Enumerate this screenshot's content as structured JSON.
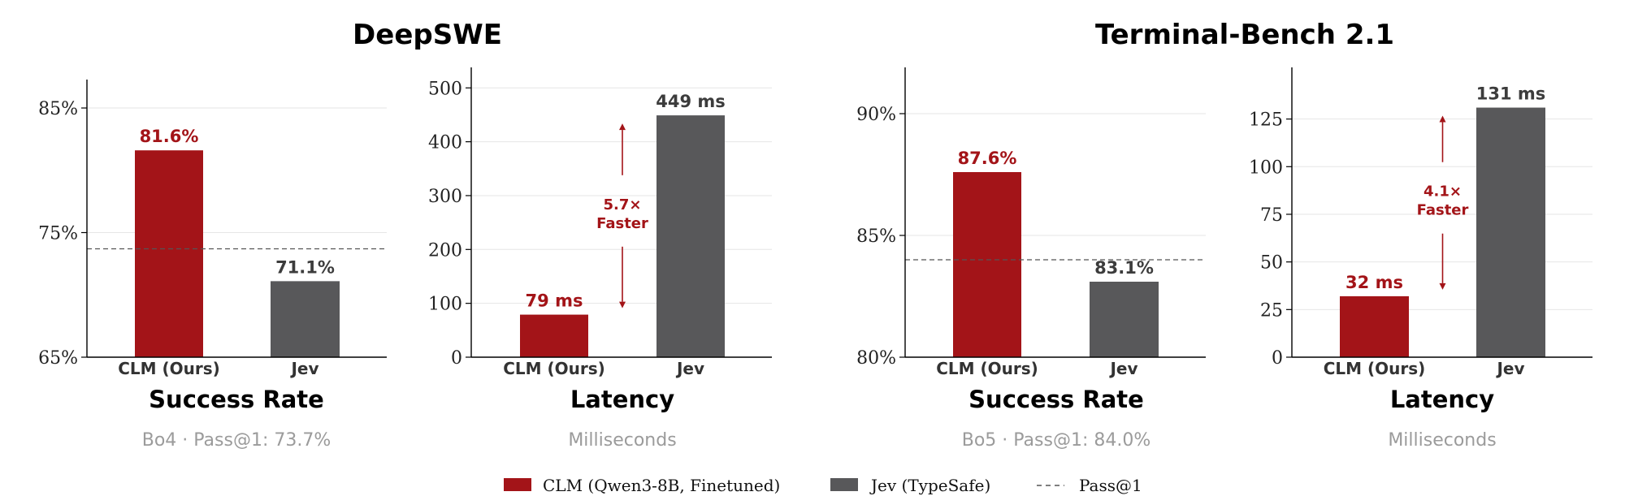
{
  "group_titles": [
    "DeepSWE",
    "Terminal-Bench 2.1"
  ],
  "colors": {
    "clm": "#a31418",
    "jev": "#58585a",
    "pass": "#555555"
  },
  "legend": [
    {
      "key": "clm",
      "label": "CLM (Qwen3-8B, Finetuned)",
      "kind": "box"
    },
    {
      "key": "jev",
      "label": "Jev (TypeSafe)",
      "kind": "box"
    },
    {
      "key": "pass",
      "label": "Pass@1",
      "kind": "dash"
    }
  ],
  "chart_data": [
    {
      "type": "bar",
      "group": "DeepSWE",
      "title": "Success Rate",
      "subtitle": "Bo4 · Pass@1: 73.7%",
      "categories": [
        "CLM (Ours)",
        "Jev"
      ],
      "values": [
        81.6,
        71.1
      ],
      "value_labels": [
        "81.6%",
        "71.1%"
      ],
      "ylim": [
        65,
        86.5
      ],
      "yticks": [
        65,
        75,
        85
      ],
      "ytick_labels": [
        "65%",
        "75%",
        "85%"
      ],
      "reference_line": {
        "name": "Pass@1",
        "value": 73.7
      }
    },
    {
      "type": "bar",
      "group": "DeepSWE",
      "title": "Latency",
      "subtitle": "Milliseconds",
      "categories": [
        "CLM (Ours)",
        "Jev"
      ],
      "values": [
        79,
        449
      ],
      "value_labels": [
        "79 ms",
        "449 ms"
      ],
      "ylim": [
        0,
        520
      ],
      "yticks": [
        0,
        100,
        200,
        300,
        400,
        500
      ],
      "ytick_labels": [
        "0",
        "100",
        "200",
        "300",
        "400",
        "500"
      ],
      "annotation": {
        "lines": [
          "5.7×",
          "Faster"
        ],
        "from": 79,
        "to": 449
      }
    },
    {
      "type": "bar",
      "group": "Terminal-Bench 2.1",
      "title": "Success Rate",
      "subtitle": "Bo5 · Pass@1: 84.0%",
      "categories": [
        "CLM (Ours)",
        "Jev"
      ],
      "values": [
        87.6,
        83.1
      ],
      "value_labels": [
        "87.6%",
        "83.1%"
      ],
      "ylim": [
        80,
        91.5
      ],
      "yticks": [
        80,
        85,
        90
      ],
      "ytick_labels": [
        "80%",
        "85%",
        "90%"
      ],
      "reference_line": {
        "name": "Pass@1",
        "value": 84.0
      }
    },
    {
      "type": "bar",
      "group": "Terminal-Bench 2.1",
      "title": "Latency",
      "subtitle": "Milliseconds",
      "categories": [
        "CLM (Ours)",
        "Jev"
      ],
      "values": [
        32,
        131
      ],
      "value_labels": [
        "32 ms",
        "131 ms"
      ],
      "ylim": [
        0,
        147
      ],
      "yticks": [
        0,
        25,
        50,
        75,
        100,
        125
      ],
      "ytick_labels": [
        "0",
        "25",
        "50",
        "75",
        "100",
        "125"
      ],
      "annotation": {
        "lines": [
          "4.1×",
          "Faster"
        ],
        "from": 32,
        "to": 131
      }
    }
  ]
}
